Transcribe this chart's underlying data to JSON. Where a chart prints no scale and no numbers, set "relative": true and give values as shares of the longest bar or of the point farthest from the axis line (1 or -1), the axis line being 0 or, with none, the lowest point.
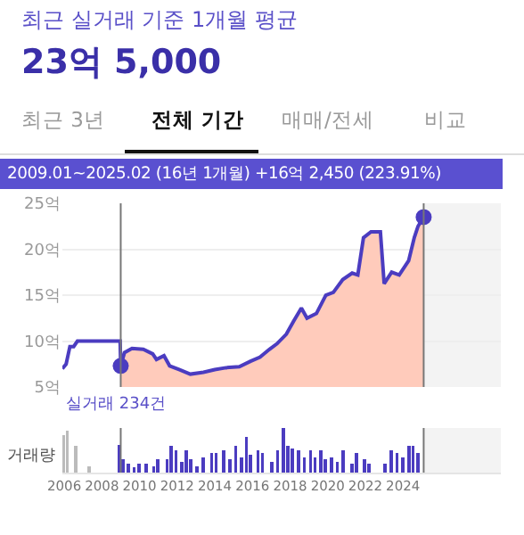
{
  "chart_data": [
    {
      "type": "line",
      "title": "최근 실거래 기준 1개월 평균",
      "subtitle": "23억 5,000",
      "annotations": [
        "최근 3년",
        "전체 기간",
        "매매/전세",
        "비교",
        "2009.01~2025.02 (16년 1개월) +16억 2,450 (223.91%)"
      ],
      "series": [
        {
          "type": "line",
          "color": "#4b3cc0",
          "x": [
            2005.9,
            2006.1,
            2006.3,
            2006.5,
            2006.7,
            2008.9,
            2008.97,
            2009.0,
            2009.2,
            2009.6,
            2010.2,
            2010.7,
            2010.9,
            2011.3,
            2011.6,
            2012.1,
            2012.7,
            2013.4,
            2014.0,
            2014.6,
            2015.3,
            2015.9,
            2016.4,
            2016.9,
            2017.3,
            2017.8,
            2018.2,
            2018.6,
            2018.9,
            2019.4,
            2019.9,
            2020.3,
            2020.8,
            2021.3,
            2021.6,
            2021.9,
            2022.3,
            2022.8,
            2023.0,
            2023.4,
            2023.8,
            2024.3,
            2024.6,
            2024.8,
            2025.1
          ],
          "values": [
            7.0,
            7.5,
            9.4,
            9.4,
            10.0,
            10.0,
            10.0,
            7.3,
            8.75,
            9.2,
            9.1,
            8.6,
            8.0,
            8.4,
            7.3,
            6.9,
            6.4,
            6.6,
            6.9,
            7.1,
            7.2,
            7.8,
            8.25,
            9.1,
            9.7,
            10.75,
            12.2,
            13.6,
            12.5,
            13.0,
            15.0,
            15.3,
            16.7,
            17.4,
            17.2,
            21.25,
            21.9,
            21.9,
            16.25,
            17.5,
            17.2,
            18.75,
            21.25,
            22.5,
            23.5
          ]
        },
        {
          "type": "area",
          "color": "#ffcbbb",
          "x": [
            2009.0,
            2009.2,
            2009.6,
            2010.2,
            2010.7,
            2010.9,
            2011.3,
            2011.6,
            2012.1,
            2012.7,
            2013.4,
            2014.0,
            2014.6,
            2015.3,
            2015.9,
            2016.4,
            2016.9,
            2017.3,
            2017.8,
            2018.2,
            2018.6,
            2018.9,
            2019.4,
            2019.9,
            2020.3,
            2020.8,
            2021.3,
            2021.6,
            2021.9,
            2022.3,
            2022.8,
            2023.0,
            2023.4,
            2023.8,
            2024.3,
            2024.6,
            2024.8,
            2025.1
          ],
          "values": [
            7.3,
            8.75,
            9.2,
            9.1,
            8.6,
            8.0,
            8.4,
            7.3,
            6.9,
            6.4,
            6.6,
            6.9,
            7.1,
            7.2,
            7.8,
            8.25,
            9.1,
            9.7,
            10.75,
            12.2,
            13.6,
            12.5,
            13.0,
            15.0,
            15.3,
            16.7,
            17.4,
            17.2,
            21.25,
            21.9,
            21.9,
            16.25,
            17.5,
            17.2,
            18.75,
            21.25,
            22.5,
            23.5
          ]
        },
        {
          "type": "scatter",
          "color": "#4b3cc0",
          "marker": "circle",
          "x": [
            2009.0,
            2025.1
          ],
          "values": [
            7.3,
            23.5
          ]
        }
      ],
      "xlim": [
        2005.9,
        2029.2
      ],
      "ylim": [
        5,
        25
      ],
      "yticks": [
        {
          "value": 5,
          "label": "5억"
        },
        {
          "value": 10,
          "label": "10억"
        },
        {
          "value": 15,
          "label": "15억"
        },
        {
          "value": 20,
          "label": "20억"
        },
        {
          "value": 25,
          "label": "25억"
        }
      ],
      "tick_labels": "y",
      "grid": "y",
      "ref_lines": [
        {
          "axis": "x",
          "value": 2009.0,
          "color": "#777777"
        },
        {
          "axis": "x",
          "value": 2025.1,
          "color": "#777777"
        }
      ],
      "bands": [
        {
          "axis": "x",
          "from": 2025.1,
          "to": 2029.2,
          "color": "#f3f3f3"
        }
      ]
    },
    {
      "type": "bar",
      "relative": true,
      "ylabel": "거래량",
      "annotations": [
        "실거래 234건"
      ],
      "x": [
        2005.97,
        2006.16,
        2006.6,
        2007.33,
        2008.92,
        2009.11,
        2009.4,
        2009.71,
        2009.97,
        2010.35,
        2010.76,
        2010.98,
        2011.46,
        2011.68,
        2011.94,
        2012.25,
        2012.48,
        2012.73,
        2013.05,
        2013.37,
        2013.84,
        2014.06,
        2014.48,
        2014.79,
        2015.11,
        2015.43,
        2015.68,
        2015.9,
        2016.29,
        2016.54,
        2017.02,
        2017.33,
        2017.65,
        2017.87,
        2018.13,
        2018.44,
        2018.76,
        2019.08,
        2019.33,
        2019.62,
        2019.87,
        2020.19,
        2020.51,
        2020.83,
        2021.3,
        2021.52,
        2021.94,
        2022.19,
        2023.05,
        2023.37,
        2023.68,
        2024.0,
        2024.32,
        2024.54,
        2024.79
      ],
      "values": [
        0.85,
        0.95,
        0.6,
        0.15,
        0.62,
        0.3,
        0.2,
        0.12,
        0.2,
        0.2,
        0.15,
        0.3,
        0.3,
        0.6,
        0.5,
        0.25,
        0.5,
        0.3,
        0.15,
        0.35,
        0.45,
        0.45,
        0.5,
        0.3,
        0.6,
        0.35,
        0.8,
        0.4,
        0.5,
        0.45,
        0.25,
        0.5,
        1.0,
        0.6,
        0.55,
        0.5,
        0.35,
        0.5,
        0.35,
        0.5,
        0.3,
        0.35,
        0.25,
        0.5,
        0.2,
        0.45,
        0.3,
        0.2,
        0.2,
        0.5,
        0.45,
        0.35,
        0.6,
        0.6,
        0.45
      ],
      "colors": [
        "#bbbbbb",
        "#bbbbbb",
        "#bbbbbb",
        "#bbbbbb",
        "#4b3cc0",
        "#4b3cc0",
        "#4b3cc0",
        "#4b3cc0",
        "#4b3cc0",
        "#4b3cc0",
        "#4b3cc0",
        "#4b3cc0",
        "#4b3cc0",
        "#4b3cc0",
        "#4b3cc0",
        "#4b3cc0",
        "#4b3cc0",
        "#4b3cc0",
        "#4b3cc0",
        "#4b3cc0",
        "#4b3cc0",
        "#4b3cc0",
        "#4b3cc0",
        "#4b3cc0",
        "#4b3cc0",
        "#4b3cc0",
        "#4b3cc0",
        "#4b3cc0",
        "#4b3cc0",
        "#4b3cc0",
        "#4b3cc0",
        "#4b3cc0",
        "#4b3cc0",
        "#4b3cc0",
        "#4b3cc0",
        "#4b3cc0",
        "#4b3cc0",
        "#4b3cc0",
        "#4b3cc0",
        "#4b3cc0",
        "#4b3cc0",
        "#4b3cc0",
        "#4b3cc0",
        "#4b3cc0",
        "#4b3cc0",
        "#4b3cc0",
        "#4b3cc0",
        "#4b3cc0",
        "#4b3cc0",
        "#4b3cc0",
        "#4b3cc0",
        "#4b3cc0",
        "#4b3cc0",
        "#4b3cc0",
        "#4b3cc0"
      ],
      "xlim": [
        2005.9,
        2029.2
      ],
      "xticks": [
        2006,
        2008,
        2010,
        2012,
        2014,
        2016,
        2018,
        2020,
        2022,
        2024
      ],
      "tick_labels": "x",
      "ref_lines": [
        {
          "axis": "x",
          "value": 2009.0,
          "color": "#777777"
        },
        {
          "axis": "x",
          "value": 2025.1,
          "color": "#777777"
        }
      ],
      "bands": [
        {
          "axis": "x",
          "from": 2025.1,
          "to": 2029.2,
          "color": "#f3f3f3"
        }
      ]
    }
  ]
}
